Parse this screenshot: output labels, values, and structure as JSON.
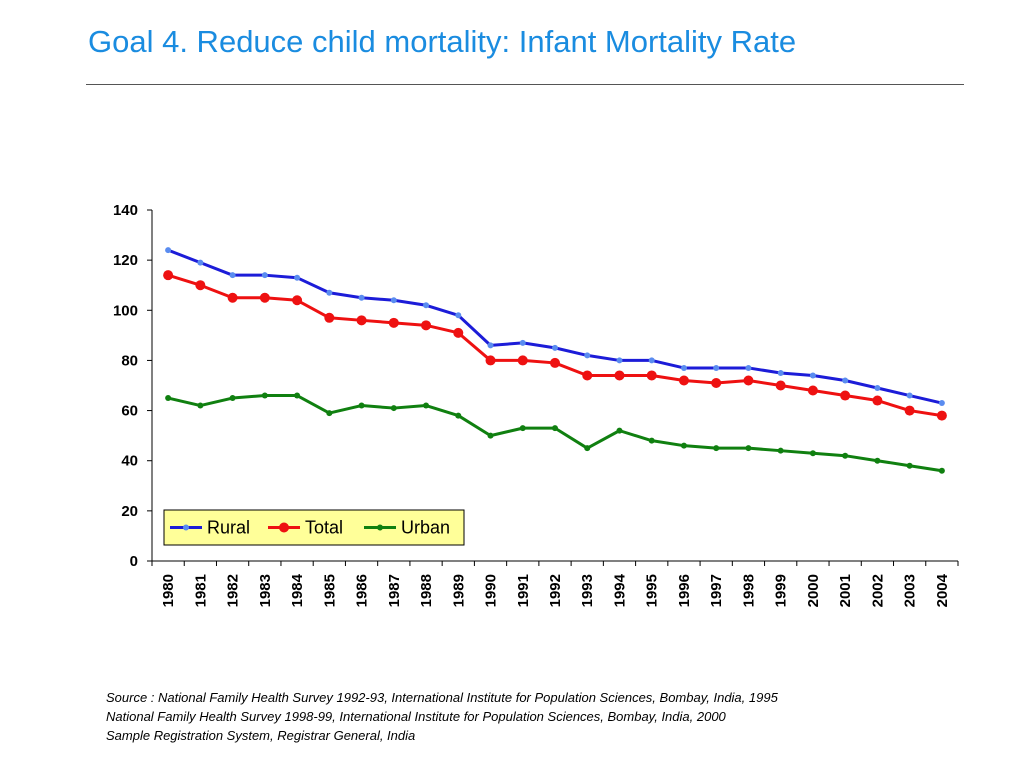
{
  "slide": {
    "title": "Goal 4. Reduce child mortality: Infant Mortality Rate"
  },
  "chart_data": {
    "type": "line",
    "title": "",
    "xlabel": "",
    "ylabel": "",
    "ylim": [
      0,
      140
    ],
    "yticks": [
      0,
      20,
      40,
      60,
      80,
      100,
      120,
      140
    ],
    "grid": false,
    "legend_position": "bottom-left",
    "categories": [
      "1980",
      "1981",
      "1982",
      "1983",
      "1984",
      "1985",
      "1986",
      "1987",
      "1988",
      "1989",
      "1990",
      "1991",
      "1992",
      "1993",
      "1994",
      "1995",
      "1996",
      "1997",
      "1998",
      "1999",
      "2000",
      "2001",
      "2002",
      "2003",
      "2004"
    ],
    "series": [
      {
        "name": "Rural",
        "color": "#1c1cd8",
        "marker_color": "#5a8cf0",
        "values": [
          124,
          119,
          114,
          114,
          113,
          107,
          105,
          104,
          102,
          98,
          86,
          87,
          85,
          82,
          80,
          80,
          77,
          77,
          77,
          75,
          74,
          72,
          69,
          66,
          63
        ]
      },
      {
        "name": "Total",
        "color": "#ee1111",
        "marker_color": "#ee1111",
        "values": [
          114,
          110,
          105,
          105,
          104,
          97,
          96,
          95,
          94,
          91,
          80,
          80,
          79,
          74,
          74,
          74,
          72,
          71,
          72,
          70,
          68,
          66,
          64,
          60,
          58
        ]
      },
      {
        "name": "Urban",
        "color": "#108010",
        "marker_color": "#108010",
        "values": [
          65,
          62,
          65,
          66,
          66,
          59,
          62,
          61,
          62,
          58,
          50,
          53,
          53,
          45,
          52,
          48,
          46,
          45,
          45,
          44,
          43,
          42,
          40,
          38,
          36
        ]
      }
    ],
    "legend_background": "#ffff99"
  },
  "source": {
    "line1": "Source : National Family Health Survey 1992-93, International Institute for Population Sciences, Bombay, India, 1995",
    "line2": "National Family Health Survey 1998-99, International Institute for Population Sciences, Bombay, India, 2000",
    "line3": "Sample Registration System, Registrar General, India"
  }
}
